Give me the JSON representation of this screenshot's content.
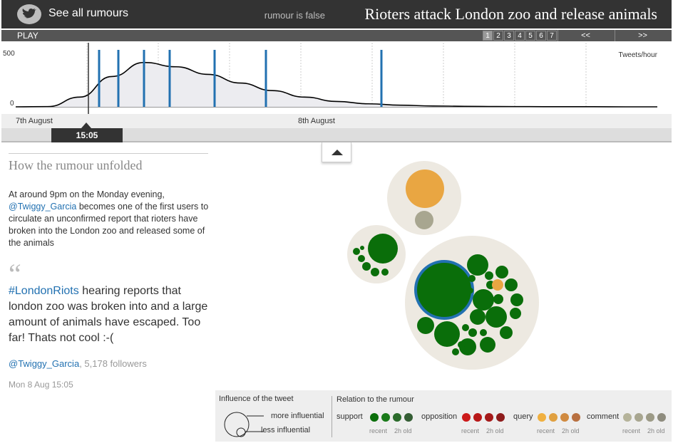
{
  "header": {
    "see_all": "See all rumours",
    "status": "rumour is false",
    "title": "Rioters attack London zoo and release animals"
  },
  "controls": {
    "play": "PLAY",
    "pages": [
      "1",
      "2",
      "3",
      "4",
      "5",
      "6",
      "7"
    ],
    "active_page": "1",
    "prev": "<<",
    "next": ">>"
  },
  "timeline": {
    "ylabel": "Tweets/hour",
    "y_max_label": "500",
    "y_min_label": "0",
    "dates": [
      "7th August",
      "8th August"
    ],
    "current_time": "15:05"
  },
  "chart_data": {
    "type": "area",
    "ylabel": "Tweets/hour",
    "ylim": [
      0,
      500
    ],
    "x": [
      0,
      0.05,
      0.1,
      0.15,
      0.2,
      0.25,
      0.3,
      0.35,
      0.4,
      0.45,
      0.5,
      0.55,
      0.6,
      0.65,
      0.7,
      0.75,
      0.8,
      0.85,
      0.9,
      0.95,
      1.0
    ],
    "values": [
      0,
      2,
      90,
      280,
      410,
      370,
      300,
      220,
      150,
      90,
      50,
      28,
      15,
      8,
      5,
      3,
      2,
      1,
      1,
      0,
      0
    ],
    "highlight_positions": [
      0.13,
      0.16,
      0.2,
      0.24,
      0.31,
      0.39,
      0.57
    ]
  },
  "article": {
    "section_title": "How the rumour unfolded",
    "intro_prefix": "At around 9pm on the Monday evening,",
    "intro_handle": "@Twiggy_Garcia",
    "intro_suffix": "becomes one of the first users to circulate an unconfirmed report that rioters have broken into the London zoo and released some of the animals",
    "quote_mark": "“",
    "tweet_hashtag": "#LondonRiots",
    "tweet_text": "hearing reports that london zoo was broken into and a large amount of animals have escaped. Too far! Thats not cool :-(",
    "author_handle": "@Twiggy_Garcia",
    "author_followers": ", 5,178 followers",
    "tweet_date": "Mon 8 Aug 15:05"
  },
  "legend": {
    "influence_title": "Influence of the tweet",
    "more": "more influential",
    "less": "less influential",
    "relation_title": "Relation to the rumour",
    "categories": [
      {
        "label": "support",
        "colors": [
          "#0a6e0a",
          "#1a7a1a",
          "#2b6b2b",
          "#355e35"
        ]
      },
      {
        "label": "opposition",
        "colors": [
          "#cc1a1a",
          "#b81818",
          "#a51a1a",
          "#8e1c1c"
        ]
      },
      {
        "label": "query",
        "colors": [
          "#f0b040",
          "#e0a040",
          "#d08a40",
          "#b87040"
        ]
      },
      {
        "label": "comment",
        "colors": [
          "#b5b39a",
          "#a8a690",
          "#9c9a86",
          "#8e8c7e"
        ]
      }
    ],
    "recent": "recent",
    "old": "2h old"
  },
  "colors": {
    "support": "#0a6e0a",
    "query": "#e9a642",
    "comment": "#a8a690",
    "highlight_line": "#2271b1",
    "cluster_bg": "#ede9e1"
  }
}
